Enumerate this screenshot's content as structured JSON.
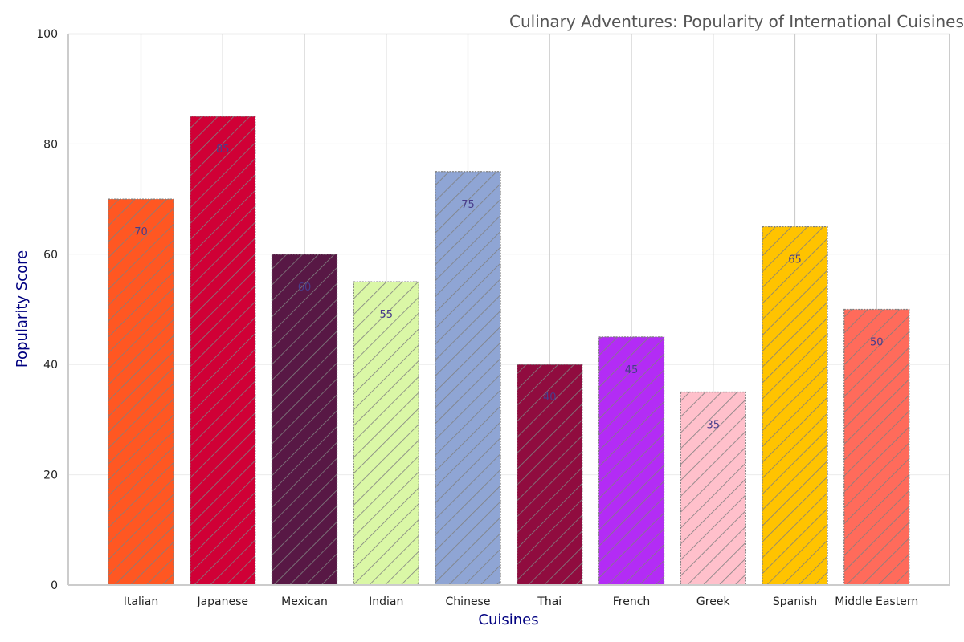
{
  "chart_data": {
    "type": "bar",
    "title": "Culinary Adventures: Popularity of International Cuisines",
    "xlabel": "Cuisines",
    "ylabel": "Popularity Score",
    "ylim": [
      0,
      100
    ],
    "yticks": [
      0,
      20,
      40,
      60,
      80,
      100
    ],
    "categories": [
      "Italian",
      "Japanese",
      "Mexican",
      "Indian",
      "Chinese",
      "Thai",
      "French",
      "Greek",
      "Spanish",
      "Middle Eastern"
    ],
    "values": [
      70,
      85,
      60,
      55,
      75,
      40,
      45,
      35,
      65,
      50
    ],
    "colors": [
      "#ff5722",
      "#d00036",
      "#581845",
      "#daf7a6",
      "#8fa5d4",
      "#900c3f",
      "#b32cf5",
      "#ffc0cb",
      "#ffc300",
      "#ff6b5b"
    ],
    "grid": "y",
    "hatch": "diagonal"
  }
}
